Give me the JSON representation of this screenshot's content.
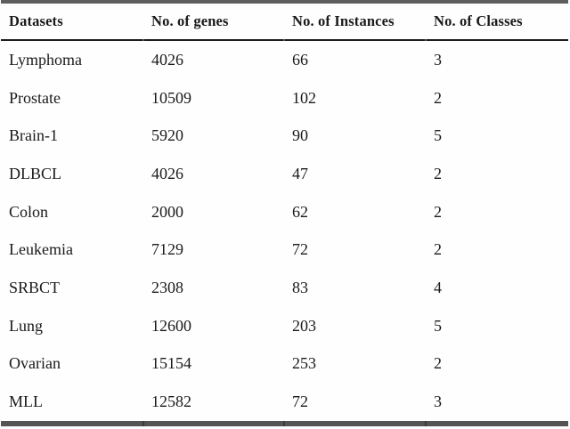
{
  "table": {
    "columns": [
      "Datasets",
      "No. of genes",
      "No. of Instances",
      "No. of Classes"
    ],
    "rows": [
      {
        "dataset": "Lymphoma",
        "genes": "4026",
        "instances": "66",
        "classes": "3"
      },
      {
        "dataset": "Prostate",
        "genes": "10509",
        "instances": "102",
        "classes": "2"
      },
      {
        "dataset": "Brain-1",
        "genes": "5920",
        "instances": "90",
        "classes": "5"
      },
      {
        "dataset": "DLBCL",
        "genes": "4026",
        "instances": "47",
        "classes": "2"
      },
      {
        "dataset": "Colon",
        "genes": "2000",
        "instances": "62",
        "classes": "2"
      },
      {
        "dataset": "Leukemia",
        "genes": "7129",
        "instances": "72",
        "classes": "2"
      },
      {
        "dataset": "SRBCT",
        "genes": "2308",
        "instances": "83",
        "classes": "4"
      },
      {
        "dataset": "Lung",
        "genes": "12600",
        "instances": "203",
        "classes": "5"
      },
      {
        "dataset": "Ovarian",
        "genes": "15154",
        "instances": "253",
        "classes": "2"
      },
      {
        "dataset": "MLL",
        "genes": "12582",
        "instances": "72",
        "classes": "3"
      }
    ],
    "colors": {
      "text": "#1a1a1a",
      "top_border": "#5e5e5e",
      "header_rule": "#1c1c1c",
      "bottom_border": "#545454",
      "background": "#fefefe"
    }
  }
}
